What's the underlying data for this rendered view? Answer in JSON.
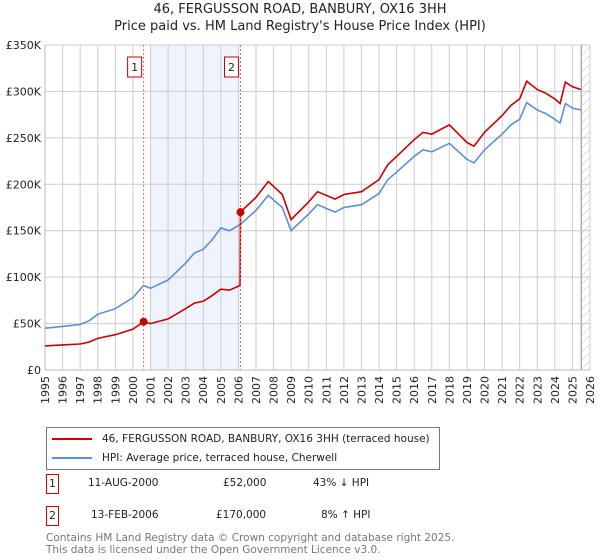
{
  "chart_data": {
    "type": "line",
    "title": "46, FERGUSSON ROAD, BANBURY, OX16 3HH",
    "subtitle": "Price paid vs. HM Land Registry's House Price Index (HPI)",
    "xlim": [
      1995,
      2026
    ],
    "ylim": [
      0,
      350000
    ],
    "y_ticks": [
      0,
      50000,
      100000,
      150000,
      200000,
      250000,
      300000,
      350000
    ],
    "y_tick_labels": [
      "£0",
      "£50K",
      "£100K",
      "£150K",
      "£200K",
      "£250K",
      "£300K",
      "£350K"
    ],
    "x_ticks": [
      1995,
      1996,
      1997,
      1998,
      1999,
      2000,
      2001,
      2002,
      2003,
      2004,
      2005,
      2006,
      2007,
      2008,
      2009,
      2010,
      2011,
      2012,
      2013,
      2014,
      2015,
      2016,
      2017,
      2018,
      2019,
      2020,
      2021,
      2022,
      2023,
      2024,
      2025,
      2026
    ],
    "grid": true,
    "shaded_range": [
      2000.61,
      2006.12
    ],
    "forecast_hatch_from": 2025.5,
    "series": [
      {
        "name": "46, FERGUSSON ROAD, BANBURY, OX16 3HH (terraced house)",
        "color": "#cc0000",
        "x": [
          1995,
          1996,
          1997,
          1997.5,
          1998,
          1999,
          2000,
          2000.61,
          2001,
          2002,
          2003,
          2003.5,
          2004,
          2004.5,
          2005,
          2005.5,
          2006.1,
          2006.12,
          2007,
          2007.7,
          2008.5,
          2009,
          2010,
          2010.5,
          2011.5,
          2012,
          2013,
          2014,
          2014.5,
          2015,
          2016,
          2016.5,
          2017,
          2018,
          2019,
          2019.4,
          2020,
          2021,
          2021.5,
          2022,
          2022.4,
          2023,
          2023.5,
          2024,
          2024.3,
          2024.6,
          2025,
          2025.5
        ],
        "values": [
          26000,
          27000,
          28000,
          30000,
          34000,
          38000,
          44000,
          52000,
          50000,
          55000,
          66000,
          72000,
          74000,
          80000,
          87000,
          86000,
          91000,
          170000,
          186000,
          203000,
          189000,
          162000,
          181000,
          192000,
          184000,
          189000,
          192000,
          205000,
          221000,
          230000,
          248000,
          256000,
          254000,
          264000,
          245000,
          241000,
          256000,
          274000,
          285000,
          292000,
          311000,
          302000,
          298000,
          292000,
          287000,
          310000,
          305000,
          302000
        ]
      },
      {
        "name": "HPI: Average price, terraced house, Cherwell",
        "color": "#5b8fd4",
        "x": [
          1995,
          1996,
          1997,
          1997.5,
          1998,
          1999,
          2000,
          2000.61,
          2001,
          2002,
          2003,
          2003.5,
          2004,
          2004.5,
          2005,
          2005.5,
          2006.12,
          2007,
          2007.7,
          2008.5,
          2009,
          2010,
          2010.5,
          2011.5,
          2012,
          2013,
          2014,
          2014.5,
          2015,
          2016,
          2016.5,
          2017,
          2018,
          2019,
          2019.4,
          2020,
          2021,
          2021.5,
          2022,
          2022.4,
          2023,
          2023.5,
          2024,
          2024.3,
          2024.6,
          2025,
          2025.5
        ],
        "values": [
          45000,
          47000,
          49000,
          53000,
          60000,
          66000,
          78000,
          91000,
          88000,
          97000,
          115000,
          126000,
          130000,
          140000,
          153000,
          150000,
          157000,
          172000,
          188000,
          175000,
          150000,
          168000,
          178000,
          170000,
          175000,
          178000,
          190000,
          205000,
          213000,
          230000,
          237000,
          235000,
          244000,
          227000,
          223000,
          237000,
          254000,
          264000,
          270000,
          288000,
          280000,
          276000,
          270000,
          266000,
          287000,
          282000,
          280000
        ]
      }
    ],
    "sales": [
      {
        "label": "1",
        "x": 2000.61,
        "value": 52000,
        "date": "11-AUG-2000",
        "price": "£52,000",
        "hpi": "43% ↓ HPI"
      },
      {
        "label": "2",
        "x": 2006.12,
        "value": 170000,
        "date": "13-FEB-2006",
        "price": "£170,000",
        "hpi": "8% ↑ HPI"
      }
    ]
  },
  "legend": {
    "property": "46, FERGUSSON ROAD, BANBURY, OX16 3HH (terraced house)",
    "hpi": "HPI: Average price, terraced house, Cherwell"
  },
  "footer": {
    "line1": "Contains HM Land Registry data © Crown copyright and database right 2025.",
    "line2": "This data is licensed under the Open Government Licence v3.0."
  }
}
